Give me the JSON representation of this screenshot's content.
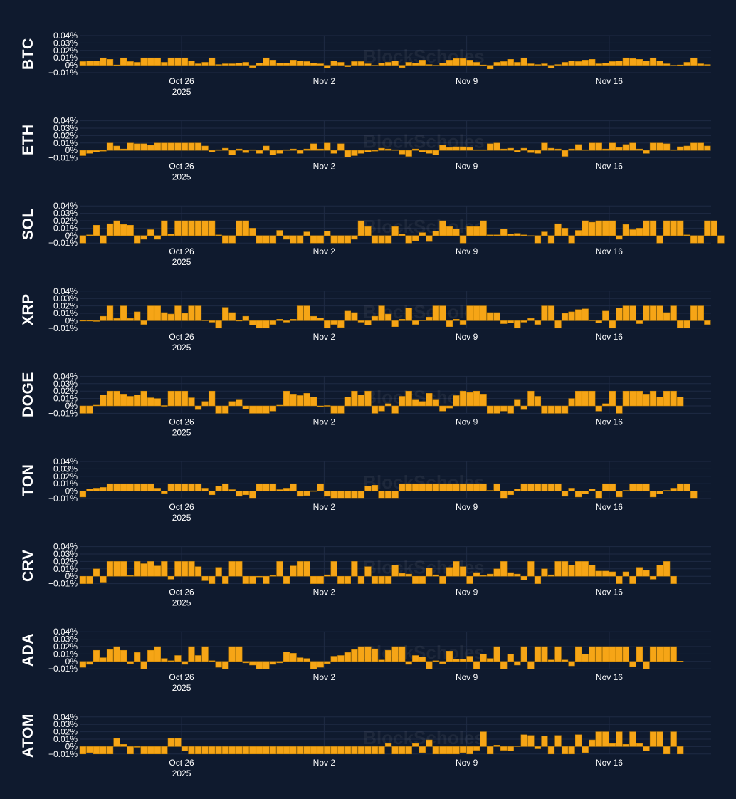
{
  "watermark": "BlockScholes",
  "colors": {
    "background": "#0f1a2e",
    "bar": "#f6a516",
    "bar_edge": "#c98400",
    "grid": "#1f2b44",
    "text": "#ffffff"
  },
  "chart_data": {
    "type": "bar",
    "layout": "small-multiples",
    "x_start": "2025-10-21",
    "x_end": "2025-11-21",
    "bar_interval_hours": 8,
    "x_ticks": [
      {
        "date": "2025-10-26",
        "label": "Oct 26",
        "sublabel": "2025"
      },
      {
        "date": "2025-11-02",
        "label": "Nov 2",
        "sublabel": ""
      },
      {
        "date": "2025-11-09",
        "label": "Nov 9",
        "sublabel": ""
      },
      {
        "date": "2025-11-16",
        "label": "Nov 16",
        "sublabel": ""
      }
    ],
    "y_ticks": [
      "0.04%",
      "0.03%",
      "0.02%",
      "0.01%",
      "0%",
      "−0.01%"
    ],
    "ylim": [
      -0.01,
      0.04
    ],
    "unit": "%",
    "panels": [
      {
        "asset": "BTC",
        "values": [
          0.005,
          0.006,
          0.006,
          0.01,
          0.008,
          0,
          0.01,
          0.005,
          0.004,
          0.01,
          0.01,
          0.01,
          0.004,
          0.01,
          0.01,
          0.01,
          0.006,
          0.002,
          0.004,
          0.01,
          0.001,
          0.002,
          0.002,
          0.003,
          0.004,
          -0.003,
          0.003,
          0.01,
          0.007,
          0.003,
          0.003,
          0.007,
          0.006,
          0.005,
          0.003,
          0.002,
          -0.004,
          0.006,
          0.004,
          -0.002,
          0.005,
          0.005,
          0.002,
          -0.001,
          0.003,
          0.004,
          0.006,
          -0.003,
          0.004,
          0.003,
          0.007,
          0.001,
          -0.001,
          0.003,
          0.007,
          0.009,
          0.009,
          0.007,
          0.004,
          0,
          -0.005,
          0.004,
          0.005,
          0.008,
          0.004,
          0.01,
          0.002,
          0.001,
          0.002,
          -0.004,
          0.001,
          0.004,
          0.006,
          0.005,
          0.007,
          0.008,
          0.002,
          0.003,
          0.005,
          0.006,
          0.01,
          0.009,
          0.008,
          0.006,
          0.01,
          0.006,
          0.002,
          -0.001,
          0,
          0.004,
          0.01,
          0.002,
          0.001
        ]
      },
      {
        "asset": "ETH",
        "values": [
          -0.007,
          -0.004,
          -0.002,
          -0.001,
          0.01,
          0.006,
          0.002,
          0.01,
          0.009,
          0.009,
          0.007,
          0.01,
          0.01,
          0.01,
          0.01,
          0.01,
          0.01,
          0.01,
          0.006,
          -0.002,
          0.001,
          0.003,
          -0.006,
          0.002,
          -0.003,
          0.001,
          -0.004,
          0.006,
          -0.006,
          -0.004,
          0.001,
          0.002,
          -0.004,
          0.002,
          0.009,
          0.002,
          0.01,
          -0.004,
          0.009,
          -0.009,
          -0.007,
          -0.004,
          -0.002,
          -0.001,
          0.003,
          0.002,
          0.001,
          -0.005,
          -0.008,
          0.002,
          -0.002,
          -0.004,
          -0.006,
          0.007,
          0.004,
          0.005,
          0.005,
          0.004,
          0.001,
          0.001,
          0.009,
          0.01,
          0.002,
          0.003,
          -0.002,
          0.003,
          -0.003,
          -0.004,
          0.01,
          0.003,
          0.002,
          -0.008,
          0.002,
          0.008,
          0.001,
          0.01,
          0.01,
          0.002,
          0.01,
          0.004,
          0.008,
          0.01,
          0.002,
          -0.004,
          0.01,
          0.01,
          0.009,
          0.001,
          0.005,
          0.006,
          0.01,
          0.01,
          0.006
        ]
      },
      {
        "asset": "SOL",
        "values": [
          -0.01,
          0.001,
          0.014,
          -0.01,
          0.016,
          0.02,
          0.015,
          0.014,
          -0.01,
          -0.005,
          0.008,
          -0.005,
          0.02,
          0.002,
          0.02,
          0.02,
          0.02,
          0.02,
          0.02,
          0.02,
          0.001,
          -0.01,
          -0.01,
          0.02,
          0.02,
          0.01,
          -0.01,
          -0.01,
          -0.01,
          0.007,
          -0.005,
          -0.01,
          -0.01,
          0.005,
          -0.01,
          -0.01,
          0.006,
          -0.01,
          -0.01,
          -0.01,
          -0.005,
          0.02,
          0.012,
          -0.01,
          -0.01,
          -0.01,
          0.012,
          0.002,
          -0.01,
          -0.007,
          0.004,
          -0.008,
          0.006,
          0.02,
          0.012,
          0.009,
          -0.01,
          0.012,
          0.012,
          0.02,
          0.001,
          0.001,
          0.009,
          0.002,
          0.003,
          0.001,
          -0.001,
          -0.01,
          0.005,
          -0.01,
          0.016,
          0.01,
          -0.01,
          0.007,
          0.02,
          0.018,
          0.02,
          0.02,
          0.02,
          -0.005,
          0.015,
          0.008,
          0.01,
          0.02,
          0.02,
          -0.01,
          0.02,
          0.02,
          0.02,
          0.001,
          -0.01,
          -0.01,
          0.02,
          0.02,
          -0.01
        ]
      },
      {
        "asset": "XRP",
        "values": [
          0,
          0,
          -0.001,
          0.006,
          0.02,
          0.003,
          0.02,
          0.003,
          0.012,
          -0.005,
          0.02,
          0.02,
          0.011,
          0.009,
          0.02,
          0.01,
          0.02,
          0.02,
          0.001,
          -0.002,
          -0.01,
          0.018,
          0.011,
          0,
          0.006,
          -0.006,
          -0.01,
          -0.01,
          -0.005,
          0.002,
          -0.002,
          0.002,
          0.02,
          0.02,
          0.006,
          0.004,
          -0.01,
          -0.005,
          -0.009,
          0.013,
          0.011,
          -0.002,
          -0.006,
          0.006,
          0.02,
          0.009,
          -0.008,
          0.002,
          0.017,
          -0.005,
          0.001,
          0.005,
          0.02,
          0.02,
          -0.008,
          0.002,
          -0.005,
          0.02,
          0.02,
          0.02,
          0.011,
          0.011,
          -0.004,
          -0.003,
          -0.01,
          -0.002,
          0.003,
          -0.005,
          0.02,
          0.02,
          -0.01,
          0.01,
          0.012,
          0.015,
          0.016,
          0.001,
          -0.003,
          0.013,
          -0.01,
          0.017,
          0.02,
          0.02,
          -0.004,
          0.02,
          0.02,
          0.02,
          0.011,
          0.02,
          -0.01,
          -0.01,
          0.02,
          0.02,
          -0.005
        ]
      },
      {
        "asset": "DOGE",
        "values": [
          -0.01,
          -0.01,
          0.001,
          0.015,
          0.02,
          0.02,
          0.016,
          0.013,
          0.015,
          0.02,
          0.011,
          0.01,
          0,
          0.02,
          0.02,
          0.02,
          0.011,
          -0.005,
          0.006,
          0.02,
          -0.01,
          -0.01,
          0.006,
          0.008,
          -0.004,
          -0.01,
          -0.01,
          -0.01,
          -0.007,
          0.001,
          0.02,
          0.016,
          0.014,
          0.017,
          0.012,
          -0.001,
          0,
          -0.01,
          -0.01,
          0.012,
          0.02,
          0.015,
          0.02,
          -0.01,
          -0.007,
          0.003,
          -0.01,
          0.013,
          0.02,
          0.008,
          0.006,
          0.017,
          0.008,
          -0.007,
          -0.003,
          0.014,
          0.02,
          0.018,
          0.02,
          0.016,
          -0.01,
          -0.01,
          -0.007,
          -0.01,
          0.008,
          -0.005,
          0.02,
          0.013,
          -0.01,
          -0.01,
          -0.01,
          -0.01,
          0.01,
          0.02,
          0.02,
          0.02,
          -0.007,
          0.003,
          0.02,
          -0.01,
          0.02,
          0.02,
          0.02,
          0.016,
          0.02,
          0.012,
          0.02,
          0.02,
          0.012
        ]
      },
      {
        "asset": "TON",
        "values": [
          -0.008,
          0.003,
          0.004,
          0.005,
          0.01,
          0.01,
          0.01,
          0.01,
          0.01,
          0.01,
          0.01,
          0.004,
          -0.003,
          0.01,
          0.01,
          0.01,
          0.01,
          0.01,
          0.004,
          -0.005,
          0.007,
          0.01,
          0.002,
          -0.007,
          -0.005,
          -0.01,
          0.01,
          0.01,
          0.01,
          0.002,
          0.004,
          0.01,
          -0.007,
          -0.006,
          0,
          0.01,
          -0.007,
          -0.01,
          -0.01,
          -0.01,
          -0.01,
          -0.01,
          0.007,
          0.008,
          -0.01,
          -0.01,
          -0.01,
          0.01,
          0.01,
          0.01,
          0.01,
          0.01,
          0.01,
          0.01,
          0.01,
          0.01,
          0.01,
          0.01,
          0.01,
          0.01,
          0.001,
          0.01,
          -0.01,
          -0.005,
          0.003,
          0.01,
          0.01,
          0.01,
          0.01,
          0.01,
          0.01,
          -0.007,
          0.004,
          -0.008,
          -0.004,
          0.003,
          -0.01,
          0.01,
          0.01,
          -0.008,
          0.001,
          0.01,
          0.01,
          0.01,
          -0.008,
          -0.004,
          0.001,
          0.004,
          0.01,
          0.01,
          -0.01
        ]
      },
      {
        "asset": "CRV",
        "values": [
          -0.01,
          -0.01,
          0.01,
          -0.008,
          0.02,
          0.02,
          0.02,
          0.001,
          0.02,
          0.017,
          0.02,
          0.014,
          0.02,
          -0.004,
          0.02,
          0.02,
          0.02,
          0.013,
          -0.006,
          -0.01,
          0.012,
          -0.01,
          0.02,
          0.02,
          -0.01,
          -0.01,
          -0.001,
          -0.01,
          0.001,
          0.02,
          -0.01,
          0.014,
          0.02,
          0.02,
          -0.01,
          -0.01,
          0.002,
          0.02,
          -0.01,
          -0.01,
          0.02,
          -0.01,
          0.013,
          -0.01,
          -0.01,
          -0.01,
          0.015,
          0.004,
          0.003,
          -0.01,
          -0.01,
          0.011,
          0.002,
          -0.01,
          0.012,
          0.02,
          0.013,
          -0.01,
          0.005,
          0.001,
          0.003,
          0.01,
          0.02,
          0.005,
          0.003,
          -0.005,
          0.02,
          -0.01,
          0.01,
          0.002,
          0.02,
          0.02,
          0.015,
          0.02,
          0.02,
          0.015,
          0.007,
          0.007,
          0.006,
          -0.01,
          0.006,
          -0.01,
          0.012,
          0.008,
          -0.004,
          0.015,
          0.02,
          -0.01
        ]
      },
      {
        "asset": "ADA",
        "values": [
          -0.008,
          -0.004,
          0.015,
          0.005,
          0.016,
          0.02,
          0.015,
          -0.003,
          0.012,
          -0.01,
          0.015,
          0.02,
          0.004,
          0.001,
          0.008,
          -0.004,
          0.02,
          0.008,
          0.02,
          0.001,
          -0.008,
          -0.01,
          0.02,
          0.02,
          -0.002,
          -0.005,
          -0.01,
          -0.01,
          -0.004,
          -0.002,
          0.013,
          0.011,
          0.005,
          0.004,
          -0.01,
          -0.008,
          -0.003,
          0.007,
          0.008,
          0.012,
          0.016,
          0.02,
          0.02,
          0.017,
          0.002,
          0.015,
          0.02,
          0.02,
          -0.004,
          0.008,
          0.006,
          -0.01,
          0.001,
          -0.003,
          0.014,
          0.003,
          0.003,
          0.007,
          -0.01,
          0.01,
          0.004,
          0.02,
          -0.01,
          0.01,
          -0.005,
          0.02,
          -0.01,
          0.02,
          0.02,
          0.002,
          0.02,
          0.002,
          -0.006,
          0.02,
          0.01,
          0.02,
          0.02,
          0.02,
          0.02,
          0.02,
          0.02,
          -0.007,
          0.02,
          -0.01,
          0.02,
          0.02,
          0.02,
          0.02,
          0
        ]
      },
      {
        "asset": "ATOM",
        "values": [
          -0.01,
          -0.008,
          -0.01,
          -0.01,
          -0.01,
          0.011,
          0.003,
          -0.01,
          -0.001,
          -0.01,
          -0.01,
          -0.01,
          -0.01,
          0.011,
          0.011,
          -0.006,
          -0.01,
          -0.01,
          -0.01,
          -0.01,
          -0.01,
          -0.01,
          -0.01,
          -0.01,
          -0.01,
          -0.01,
          -0.01,
          -0.01,
          -0.01,
          -0.01,
          -0.01,
          -0.01,
          -0.01,
          -0.01,
          -0.01,
          -0.01,
          -0.01,
          -0.01,
          -0.01,
          -0.01,
          -0.01,
          -0.01,
          -0.01,
          -0.01,
          -0.01,
          0.004,
          -0.01,
          -0.01,
          -0.01,
          0.004,
          -0.008,
          0.009,
          -0.01,
          -0.01,
          -0.01,
          -0.01,
          -0.008,
          -0.01,
          -0.005,
          0.02,
          -0.01,
          0.002,
          -0.005,
          -0.006,
          0.001,
          0.016,
          0.015,
          -0.003,
          0.014,
          -0.01,
          0.015,
          -0.01,
          -0.01,
          0.016,
          -0.008,
          0.009,
          0.02,
          0.02,
          0.004,
          0.02,
          0.003,
          0.02,
          0.004,
          -0.006,
          0.02,
          0.02,
          -0.01,
          0.02,
          -0.01
        ]
      }
    ]
  }
}
